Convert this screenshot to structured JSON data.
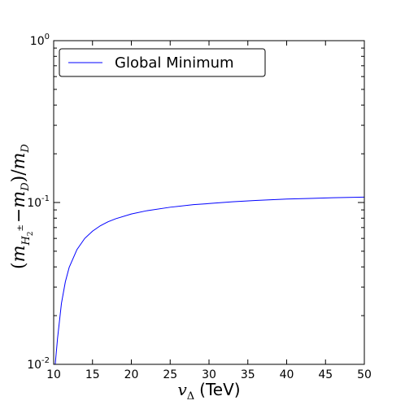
{
  "chart_data": {
    "type": "line",
    "xscale": "linear",
    "yscale": "log",
    "xlim": [
      10,
      50
    ],
    "ylim": [
      0.01,
      1
    ],
    "x_ticks": [
      10,
      15,
      20,
      25,
      30,
      35,
      40,
      45,
      50
    ],
    "y_ticks": [
      {
        "value": 0.01,
        "base": "10",
        "exp": "-2"
      },
      {
        "value": 0.1,
        "base": "10",
        "exp": "-1"
      },
      {
        "value": 1,
        "base": "10",
        "exp": "0"
      }
    ],
    "xlabel": {
      "symbol": "v",
      "subscript": "Δ",
      "unit": "(TeV)"
    },
    "ylabel": "(m_{H_2^±} − m_D)/m_D",
    "grid": false,
    "legend_position": "top-left",
    "series": [
      {
        "name": "Global Minimum",
        "color": "#0000ff",
        "x": [
          10.2,
          10.5,
          11,
          11.5,
          12,
          13,
          14,
          15,
          16,
          17,
          18,
          20,
          22,
          25,
          28,
          30,
          33,
          36,
          40,
          43,
          46,
          50
        ],
        "y": [
          0.01,
          0.0145,
          0.0238,
          0.0323,
          0.0398,
          0.0512,
          0.06,
          0.0665,
          0.0718,
          0.076,
          0.0794,
          0.0849,
          0.089,
          0.0935,
          0.097,
          0.0985,
          0.101,
          0.103,
          0.105,
          0.106,
          0.107,
          0.108
        ]
      }
    ]
  }
}
